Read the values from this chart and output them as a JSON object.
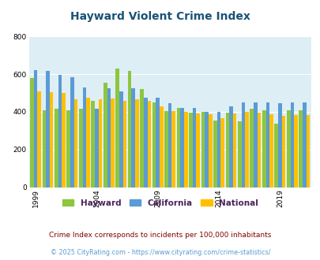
{
  "title": "Hayward Violent Crime Index",
  "title_color": "#1a5276",
  "background_color": "#deeef5",
  "outer_bg": "#ffffff",
  "years": [
    1999,
    2000,
    2001,
    2002,
    2003,
    2004,
    2005,
    2006,
    2007,
    2008,
    2009,
    2010,
    2011,
    2012,
    2013,
    2014,
    2015,
    2016,
    2017,
    2018,
    2019,
    2020,
    2021
  ],
  "hayward": [
    580,
    410,
    415,
    410,
    415,
    460,
    555,
    630,
    615,
    520,
    450,
    405,
    420,
    395,
    400,
    355,
    395,
    350,
    415,
    410,
    335,
    410,
    410
  ],
  "california": [
    620,
    615,
    595,
    585,
    530,
    415,
    525,
    510,
    525,
    475,
    475,
    445,
    420,
    420,
    400,
    400,
    430,
    450,
    450,
    450,
    445,
    448,
    448
  ],
  "national": [
    510,
    505,
    500,
    465,
    475,
    465,
    470,
    460,
    465,
    460,
    430,
    405,
    400,
    390,
    385,
    365,
    390,
    400,
    395,
    385,
    380,
    383,
    383
  ],
  "hayward_color": "#8dc63f",
  "california_color": "#5b9bd5",
  "national_color": "#ffc000",
  "ylim": [
    0,
    800
  ],
  "yticks": [
    0,
    200,
    400,
    600,
    800
  ],
  "xlabel_ticks": [
    1999,
    2004,
    2009,
    2014,
    2019
  ],
  "footnote1": "Crime Index corresponds to incidents per 100,000 inhabitants",
  "footnote2": "© 2025 CityRating.com - https://www.cityrating.com/crime-statistics/",
  "footnote1_color": "#800000",
  "footnote2_color": "#5b9bd5",
  "legend_label_color": "#4a235a"
}
